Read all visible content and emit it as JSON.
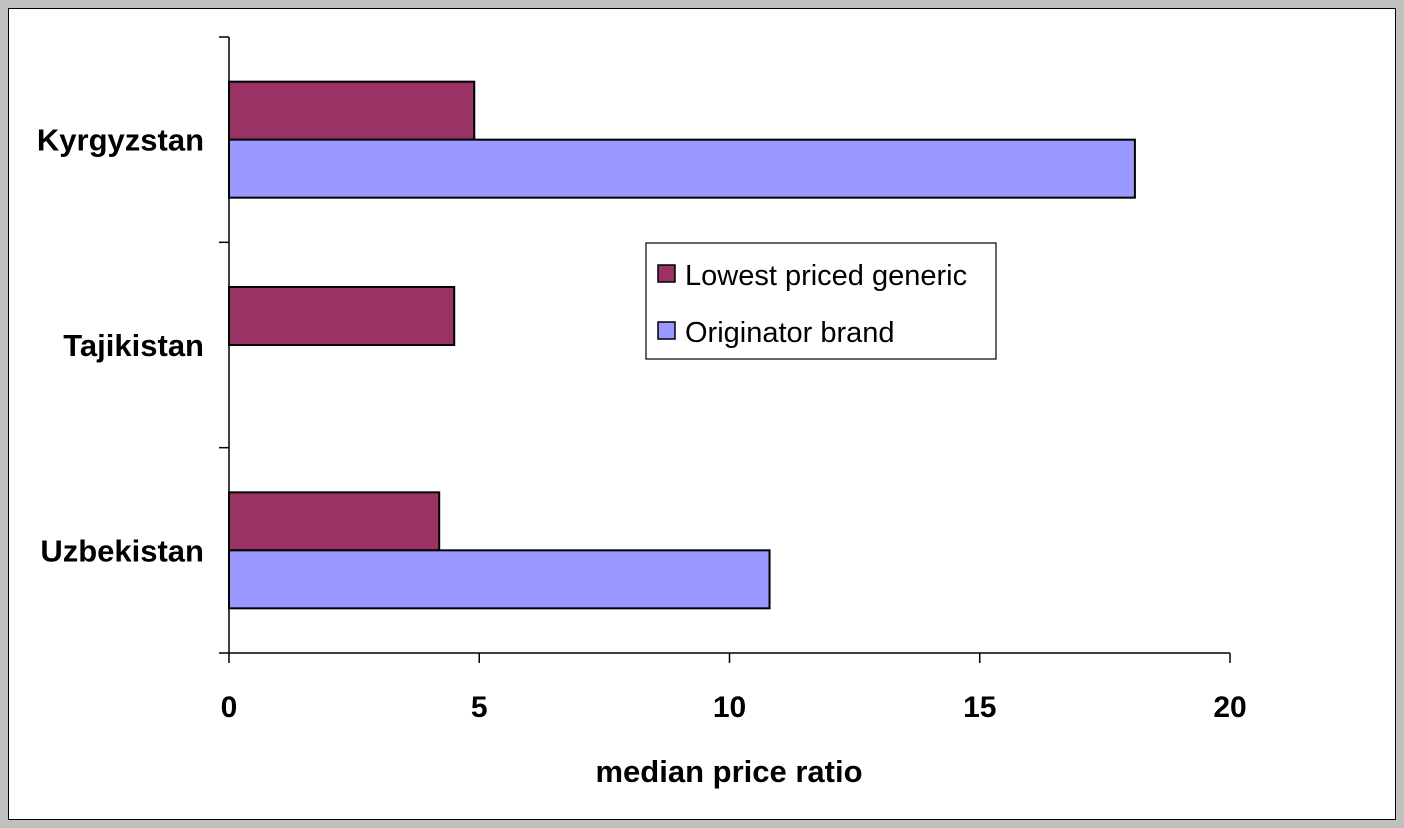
{
  "colors": {
    "background": "#c0c0c0",
    "plot_background": "#ffffff",
    "generic": "#993366",
    "brand": "#9999ff",
    "axis": "#000000"
  },
  "chart_data": {
    "type": "bar",
    "orientation": "horizontal",
    "categories": [
      "Kyrgyzstan",
      "Tajikistan",
      "Uzbekistan"
    ],
    "series": [
      {
        "name": "Lowest priced generic",
        "values": [
          4.9,
          4.5,
          4.2
        ]
      },
      {
        "name": "Originator brand",
        "values": [
          18.1,
          null,
          10.8
        ]
      }
    ],
    "title": "",
    "xlabel": "median price ratio",
    "ylabel": "",
    "xlim": [
      0,
      20
    ],
    "xticks": [
      "0",
      "5",
      "10",
      "15",
      "20"
    ],
    "grid": false,
    "legend": "center-right"
  }
}
